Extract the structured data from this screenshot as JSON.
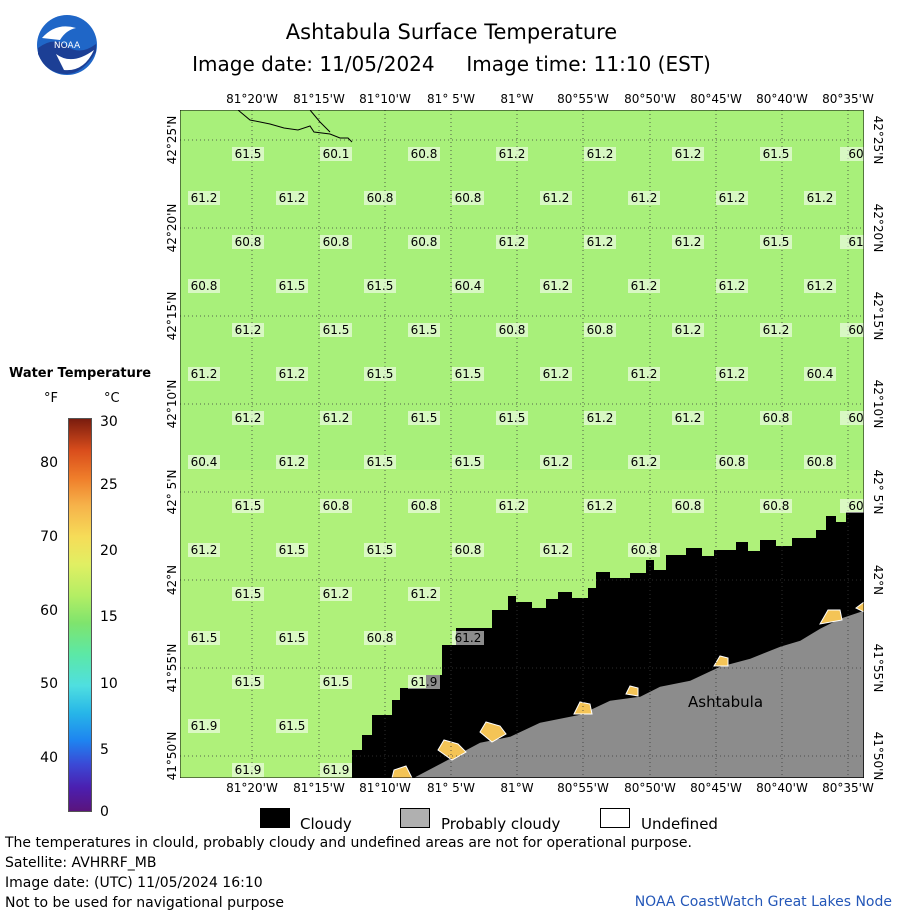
{
  "header": {
    "title": "Ashtabula Surface Temperature",
    "subtitle": "Image date: 11/05/2024     Image time: 11:10 (EST)",
    "logo_text": "NOAA"
  },
  "legend": {
    "title": "Water Temperature",
    "unit_f": "°F",
    "unit_c": "°C",
    "f_ticks": [
      "80",
      "70",
      "60",
      "50",
      "40"
    ],
    "c_ticks": [
      "30",
      "25",
      "20",
      "15",
      "10",
      "5",
      "0"
    ],
    "items": [
      {
        "label": "Cloudy",
        "color": "#000000"
      },
      {
        "label": "Probably cloudy",
        "color": "#b0b0b0"
      },
      {
        "label": "Undefined",
        "color": "#ffffff"
      }
    ]
  },
  "map": {
    "lon_labels": [
      "81°20'W",
      "81°15'W",
      "81°10'W",
      "81° 5'W",
      "81°W",
      "80°55'W",
      "80°50'W",
      "80°45'W",
      "80°40'W",
      "80°35'W"
    ],
    "lat_labels": [
      "42°25'N",
      "42°20'N",
      "42°15'N",
      "42°10'N",
      "42° 5'N",
      "42°N",
      "41°55'N",
      "41°50'N"
    ],
    "city": "Ashtabula",
    "temp_rows": [
      [
        "61.5",
        "60.1",
        "60.8",
        "61.2",
        "61.2",
        "61.2",
        "61.5",
        "60"
      ],
      [
        "61.2",
        "61.2",
        "60.8",
        "60.8",
        "61.2",
        "61.2",
        "61.2",
        "61.2"
      ],
      [
        "60.8",
        "60.8",
        "60.8",
        "61.2",
        "61.2",
        "61.2",
        "61.5",
        "61"
      ],
      [
        "60.8",
        "61.5",
        "61.5",
        "60.4",
        "61.2",
        "61.2",
        "61.2",
        "61.2"
      ],
      [
        "61.2",
        "61.5",
        "61.5",
        "60.8",
        "60.8",
        "61.2",
        "61.2",
        "60"
      ],
      [
        "61.2",
        "61.2",
        "61.5",
        "61.5",
        "61.2",
        "61.2",
        "61.2",
        "60.4"
      ],
      [
        "61.2",
        "61.2",
        "61.5",
        "61.5",
        "61.2",
        "61.2",
        "60.8",
        "60"
      ],
      [
        "60.4",
        "61.2",
        "61.5",
        "61.5",
        "61.2",
        "61.2",
        "60.8",
        "60.8"
      ],
      [
        "61.5",
        "60.8",
        "60.8",
        "61.2",
        "61.2",
        "60.8",
        "60.8",
        "60"
      ],
      [
        "61.2",
        "61.5",
        "61.5",
        "60.8",
        "61.2",
        "60.8",
        "",
        ""
      ],
      [
        "61.5",
        "61.2",
        "61.2",
        "",
        "",
        "",
        "",
        ""
      ],
      [
        "61.5",
        "61.5",
        "60.8",
        "61.2",
        "",
        "",
        "",
        ""
      ],
      [
        "61.5",
        "61.5",
        "61.9",
        "",
        "",
        "",
        "",
        ""
      ],
      [
        "61.9",
        "61.5",
        "",
        "",
        "",
        "",
        "",
        ""
      ],
      [
        "61.9",
        "61.9",
        "",
        "",
        "",
        "",
        "",
        ""
      ]
    ]
  },
  "footer": {
    "line1": "The temperatures in clould, probably cloudy and undefined areas are not for operational purpose.",
    "line2": "Satellite: AVHRRF_MB",
    "line3": "Image date: (UTC) 11/05/2024  16:10",
    "line4": "Not to be used for navigational purpose",
    "credit": "NOAA CoastWatch Great Lakes Node"
  },
  "colors": {
    "water": "#a8f07a",
    "cloud": "#000000",
    "land": "#8c8c8c",
    "ice_edge": "#f4c456"
  }
}
